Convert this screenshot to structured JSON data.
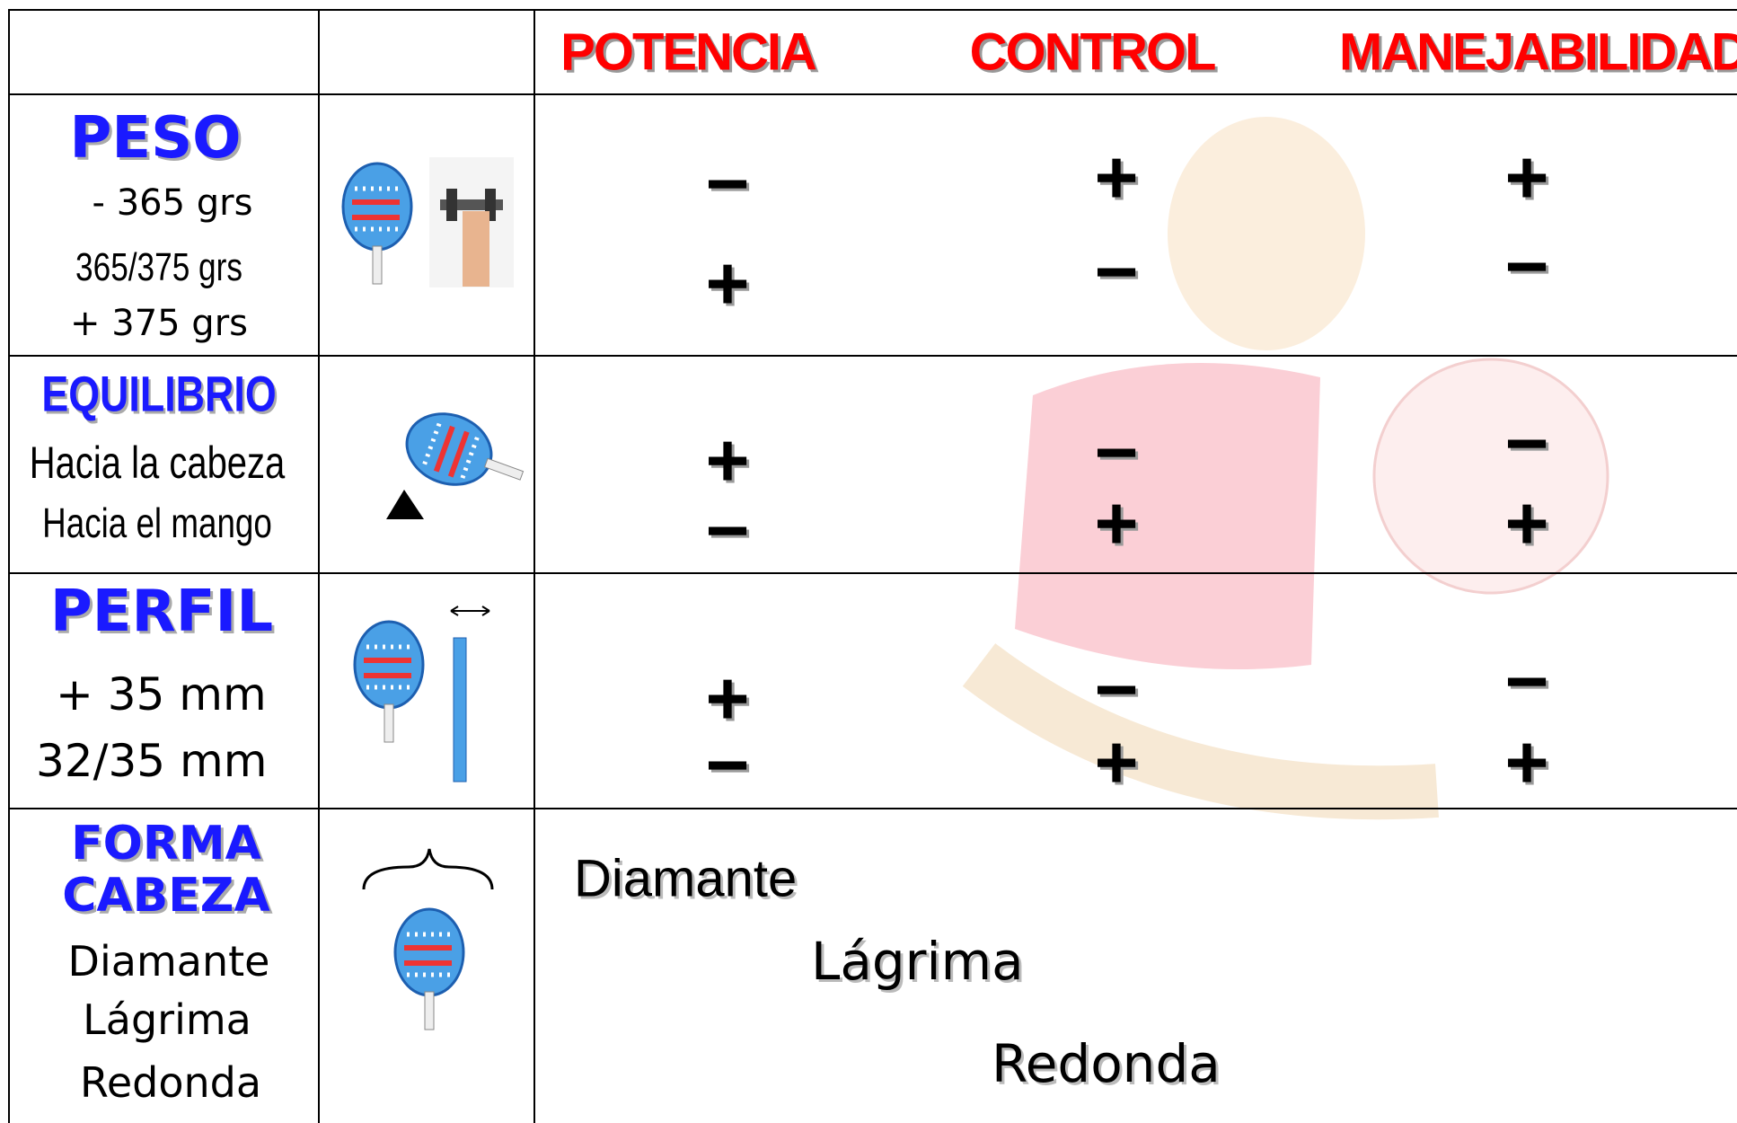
{
  "header": {
    "columns": [
      "POTENCIA",
      "CONTROL",
      "MANEJABILIDAD"
    ]
  },
  "rows": [
    {
      "title": "PESO",
      "labels": [
        "- 365 grs",
        "365/375 grs",
        "+ 375 grs"
      ],
      "marks": [
        [
          "−",
          "+"
        ],
        [
          "+",
          "−"
        ],
        [
          "+",
          "−"
        ]
      ]
    },
    {
      "title": "EQUILIBRIO",
      "labels": [
        "Hacia la cabeza",
        "Hacia el mango"
      ],
      "marks": [
        [
          "+",
          "−"
        ],
        [
          "−",
          "+"
        ],
        [
          "−",
          "+"
        ]
      ]
    },
    {
      "title": "PERFIL",
      "labels": [
        "+ 35 mm",
        "32/35 mm"
      ],
      "marks": [
        [
          "+",
          "−"
        ],
        [
          "−",
          "+"
        ],
        [
          "−",
          "+"
        ]
      ]
    },
    {
      "title": "FORMA CABEZA",
      "labels": [
        "Diamante",
        "Lágrima",
        "Redonda"
      ],
      "shapes": [
        "Diamante",
        "Lágrima",
        "Redonda"
      ]
    }
  ]
}
